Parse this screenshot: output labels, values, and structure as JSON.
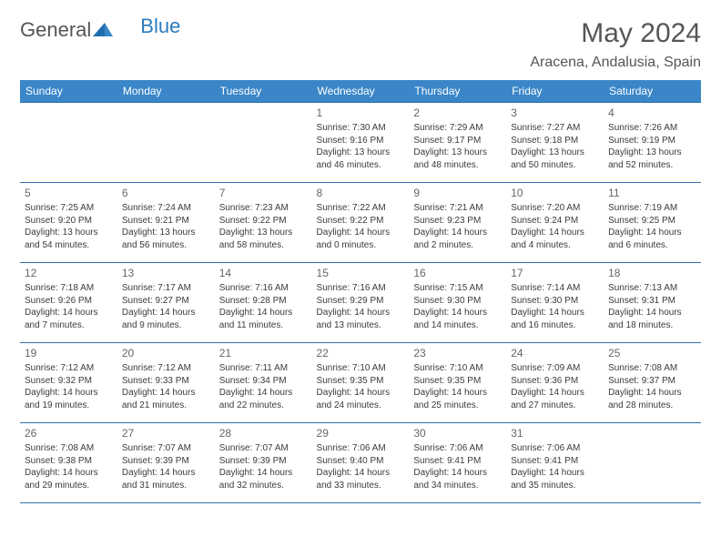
{
  "brand": {
    "part1": "General",
    "part2": "Blue"
  },
  "title": "May 2024",
  "location": "Aracena, Andalusia, Spain",
  "colors": {
    "header_bg": "#3a86c8",
    "header_text": "#ffffff",
    "border": "#2f6fa8",
    "body_text": "#3b3b3b",
    "title_text": "#565656",
    "logo_gray": "#555555",
    "logo_blue": "#2b7bbd",
    "background": "#ffffff"
  },
  "typography": {
    "title_fontsize": 30,
    "location_fontsize": 16,
    "weekday_fontsize": 12,
    "daynum_fontsize": 12,
    "body_fontsize": 10,
    "font_family": "Arial"
  },
  "weekdays": [
    "Sunday",
    "Monday",
    "Tuesday",
    "Wednesday",
    "Thursday",
    "Friday",
    "Saturday"
  ],
  "weeks": [
    [
      null,
      null,
      null,
      {
        "n": "1",
        "sr": "Sunrise: 7:30 AM",
        "ss": "Sunset: 9:16 PM",
        "d1": "Daylight: 13 hours",
        "d2": "and 46 minutes."
      },
      {
        "n": "2",
        "sr": "Sunrise: 7:29 AM",
        "ss": "Sunset: 9:17 PM",
        "d1": "Daylight: 13 hours",
        "d2": "and 48 minutes."
      },
      {
        "n": "3",
        "sr": "Sunrise: 7:27 AM",
        "ss": "Sunset: 9:18 PM",
        "d1": "Daylight: 13 hours",
        "d2": "and 50 minutes."
      },
      {
        "n": "4",
        "sr": "Sunrise: 7:26 AM",
        "ss": "Sunset: 9:19 PM",
        "d1": "Daylight: 13 hours",
        "d2": "and 52 minutes."
      }
    ],
    [
      {
        "n": "5",
        "sr": "Sunrise: 7:25 AM",
        "ss": "Sunset: 9:20 PM",
        "d1": "Daylight: 13 hours",
        "d2": "and 54 minutes."
      },
      {
        "n": "6",
        "sr": "Sunrise: 7:24 AM",
        "ss": "Sunset: 9:21 PM",
        "d1": "Daylight: 13 hours",
        "d2": "and 56 minutes."
      },
      {
        "n": "7",
        "sr": "Sunrise: 7:23 AM",
        "ss": "Sunset: 9:22 PM",
        "d1": "Daylight: 13 hours",
        "d2": "and 58 minutes."
      },
      {
        "n": "8",
        "sr": "Sunrise: 7:22 AM",
        "ss": "Sunset: 9:22 PM",
        "d1": "Daylight: 14 hours",
        "d2": "and 0 minutes."
      },
      {
        "n": "9",
        "sr": "Sunrise: 7:21 AM",
        "ss": "Sunset: 9:23 PM",
        "d1": "Daylight: 14 hours",
        "d2": "and 2 minutes."
      },
      {
        "n": "10",
        "sr": "Sunrise: 7:20 AM",
        "ss": "Sunset: 9:24 PM",
        "d1": "Daylight: 14 hours",
        "d2": "and 4 minutes."
      },
      {
        "n": "11",
        "sr": "Sunrise: 7:19 AM",
        "ss": "Sunset: 9:25 PM",
        "d1": "Daylight: 14 hours",
        "d2": "and 6 minutes."
      }
    ],
    [
      {
        "n": "12",
        "sr": "Sunrise: 7:18 AM",
        "ss": "Sunset: 9:26 PM",
        "d1": "Daylight: 14 hours",
        "d2": "and 7 minutes."
      },
      {
        "n": "13",
        "sr": "Sunrise: 7:17 AM",
        "ss": "Sunset: 9:27 PM",
        "d1": "Daylight: 14 hours",
        "d2": "and 9 minutes."
      },
      {
        "n": "14",
        "sr": "Sunrise: 7:16 AM",
        "ss": "Sunset: 9:28 PM",
        "d1": "Daylight: 14 hours",
        "d2": "and 11 minutes."
      },
      {
        "n": "15",
        "sr": "Sunrise: 7:16 AM",
        "ss": "Sunset: 9:29 PM",
        "d1": "Daylight: 14 hours",
        "d2": "and 13 minutes."
      },
      {
        "n": "16",
        "sr": "Sunrise: 7:15 AM",
        "ss": "Sunset: 9:30 PM",
        "d1": "Daylight: 14 hours",
        "d2": "and 14 minutes."
      },
      {
        "n": "17",
        "sr": "Sunrise: 7:14 AM",
        "ss": "Sunset: 9:30 PM",
        "d1": "Daylight: 14 hours",
        "d2": "and 16 minutes."
      },
      {
        "n": "18",
        "sr": "Sunrise: 7:13 AM",
        "ss": "Sunset: 9:31 PM",
        "d1": "Daylight: 14 hours",
        "d2": "and 18 minutes."
      }
    ],
    [
      {
        "n": "19",
        "sr": "Sunrise: 7:12 AM",
        "ss": "Sunset: 9:32 PM",
        "d1": "Daylight: 14 hours",
        "d2": "and 19 minutes."
      },
      {
        "n": "20",
        "sr": "Sunrise: 7:12 AM",
        "ss": "Sunset: 9:33 PM",
        "d1": "Daylight: 14 hours",
        "d2": "and 21 minutes."
      },
      {
        "n": "21",
        "sr": "Sunrise: 7:11 AM",
        "ss": "Sunset: 9:34 PM",
        "d1": "Daylight: 14 hours",
        "d2": "and 22 minutes."
      },
      {
        "n": "22",
        "sr": "Sunrise: 7:10 AM",
        "ss": "Sunset: 9:35 PM",
        "d1": "Daylight: 14 hours",
        "d2": "and 24 minutes."
      },
      {
        "n": "23",
        "sr": "Sunrise: 7:10 AM",
        "ss": "Sunset: 9:35 PM",
        "d1": "Daylight: 14 hours",
        "d2": "and 25 minutes."
      },
      {
        "n": "24",
        "sr": "Sunrise: 7:09 AM",
        "ss": "Sunset: 9:36 PM",
        "d1": "Daylight: 14 hours",
        "d2": "and 27 minutes."
      },
      {
        "n": "25",
        "sr": "Sunrise: 7:08 AM",
        "ss": "Sunset: 9:37 PM",
        "d1": "Daylight: 14 hours",
        "d2": "and 28 minutes."
      }
    ],
    [
      {
        "n": "26",
        "sr": "Sunrise: 7:08 AM",
        "ss": "Sunset: 9:38 PM",
        "d1": "Daylight: 14 hours",
        "d2": "and 29 minutes."
      },
      {
        "n": "27",
        "sr": "Sunrise: 7:07 AM",
        "ss": "Sunset: 9:39 PM",
        "d1": "Daylight: 14 hours",
        "d2": "and 31 minutes."
      },
      {
        "n": "28",
        "sr": "Sunrise: 7:07 AM",
        "ss": "Sunset: 9:39 PM",
        "d1": "Daylight: 14 hours",
        "d2": "and 32 minutes."
      },
      {
        "n": "29",
        "sr": "Sunrise: 7:06 AM",
        "ss": "Sunset: 9:40 PM",
        "d1": "Daylight: 14 hours",
        "d2": "and 33 minutes."
      },
      {
        "n": "30",
        "sr": "Sunrise: 7:06 AM",
        "ss": "Sunset: 9:41 PM",
        "d1": "Daylight: 14 hours",
        "d2": "and 34 minutes."
      },
      {
        "n": "31",
        "sr": "Sunrise: 7:06 AM",
        "ss": "Sunset: 9:41 PM",
        "d1": "Daylight: 14 hours",
        "d2": "and 35 minutes."
      },
      null
    ]
  ]
}
